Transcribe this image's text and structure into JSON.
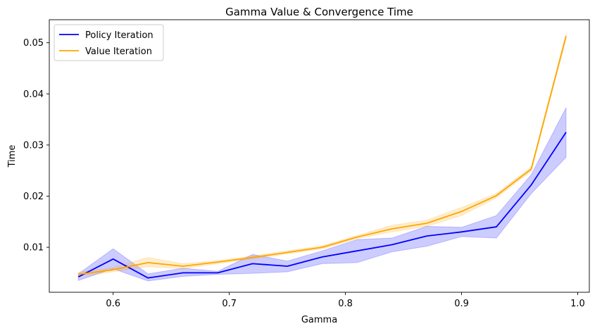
{
  "chart_data": {
    "type": "line",
    "title": "Gamma Value & Convergence Time",
    "xlabel": "Gamma",
    "ylabel": "Time",
    "xlim": [
      0.545,
      1.01
    ],
    "ylim": [
      0.0012,
      0.0545
    ],
    "xticks": [
      0.6,
      0.7,
      0.8,
      0.9,
      1.0
    ],
    "xtick_labels": [
      "0.6",
      "0.7",
      "0.8",
      "0.9",
      "1.0"
    ],
    "yticks": [
      0.01,
      0.02,
      0.03,
      0.04,
      0.05
    ],
    "ytick_labels": [
      "0.01",
      "0.02",
      "0.03",
      "0.04",
      "0.05"
    ],
    "grid": false,
    "legend": "top-left",
    "x": [
      0.57,
      0.6,
      0.63,
      0.66,
      0.69,
      0.72,
      0.75,
      0.78,
      0.81,
      0.84,
      0.87,
      0.9,
      0.93,
      0.96,
      0.99
    ],
    "series": [
      {
        "name": "Policy Iteration",
        "color": "#0000ff",
        "values": [
          0.0042,
          0.0077,
          0.004,
          0.005,
          0.005,
          0.0068,
          0.0063,
          0.0081,
          0.0093,
          0.0105,
          0.0122,
          0.013,
          0.014,
          0.0222,
          0.0325
        ],
        "lower": [
          0.0035,
          0.0058,
          0.0034,
          0.0043,
          0.0047,
          0.0049,
          0.0052,
          0.0068,
          0.007,
          0.0091,
          0.0102,
          0.0121,
          0.0118,
          0.0205,
          0.0276
        ],
        "upper": [
          0.0048,
          0.0097,
          0.0048,
          0.0059,
          0.0053,
          0.0086,
          0.0073,
          0.0093,
          0.0115,
          0.0118,
          0.0141,
          0.0139,
          0.0162,
          0.0242,
          0.0373
        ]
      },
      {
        "name": "Value Iteration",
        "color": "#ffa500",
        "values": [
          0.0047,
          0.0056,
          0.007,
          0.0063,
          0.0071,
          0.008,
          0.009,
          0.01,
          0.012,
          0.0136,
          0.0147,
          0.017,
          0.0201,
          0.0253,
          0.0513
        ],
        "lower": [
          0.0043,
          0.0052,
          0.0062,
          0.0058,
          0.0068,
          0.0077,
          0.0087,
          0.0097,
          0.0117,
          0.013,
          0.0141,
          0.0162,
          0.0197,
          0.0249,
          0.0508
        ],
        "upper": [
          0.0051,
          0.006,
          0.008,
          0.0068,
          0.0074,
          0.0083,
          0.0093,
          0.0103,
          0.0123,
          0.0143,
          0.0153,
          0.0178,
          0.0205,
          0.0257,
          0.0518
        ]
      }
    ]
  }
}
